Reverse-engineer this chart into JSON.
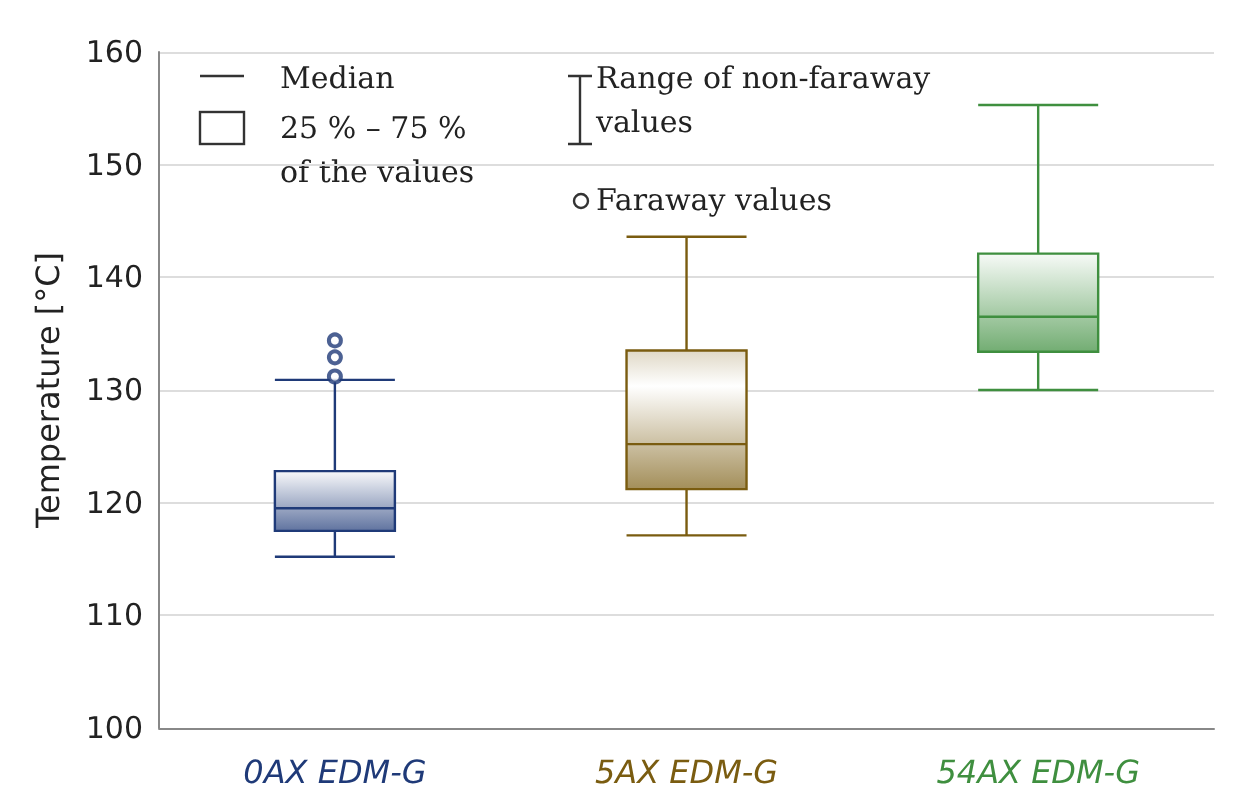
{
  "chart_data": {
    "type": "box",
    "ylabel": "Temperature [°C]",
    "categories": [
      "0AX EDM-G",
      "5AX EDM-G",
      "54AX EDM-G"
    ],
    "colors": [
      "#1f3a78",
      "#7a5c10",
      "#3f8f3f"
    ],
    "boxes": [
      {
        "low": 115.2,
        "q1": 117.5,
        "median": 119.5,
        "q3": 122.8,
        "high": 130.9,
        "outliers": [
          131.2,
          132.9,
          134.4
        ]
      },
      {
        "low": 117.1,
        "q1": 121.2,
        "median": 125.2,
        "q3": 133.5,
        "high": 143.6
      },
      {
        "low": 130.0,
        "q1": 133.4,
        "median": 136.5,
        "q3": 142.1,
        "high": 155.3
      }
    ],
    "ylim": [
      100,
      160
    ],
    "yticks": [
      100,
      110,
      120,
      130,
      140,
      150,
      160
    ],
    "grid": "y",
    "annotations": [
      "Median",
      "25 % – 75 %\nof the values",
      "Range of non-faraway\nvalues",
      "Faraway values"
    ]
  }
}
